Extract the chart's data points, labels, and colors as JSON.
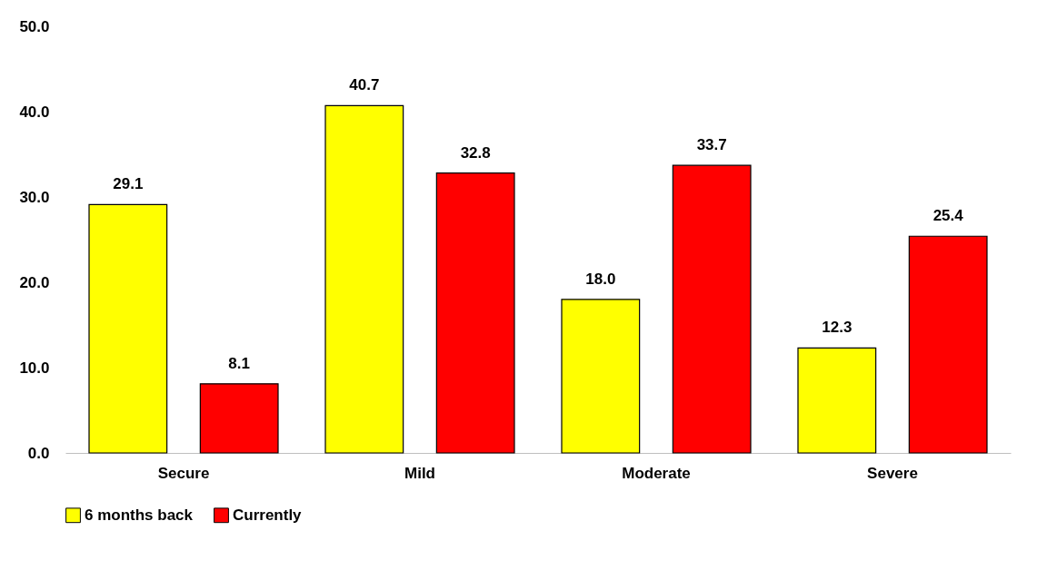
{
  "chart_data": {
    "type": "bar",
    "categories": [
      "Secure",
      "Mild",
      "Moderate",
      "Severe"
    ],
    "series": [
      {
        "name": "6 months back",
        "color": "#ffff00",
        "values": [
          29.1,
          40.7,
          18.0,
          12.3
        ]
      },
      {
        "name": "Currently",
        "color": "#ff0000",
        "values": [
          8.1,
          32.8,
          33.7,
          25.4
        ]
      }
    ],
    "ylim": [
      0,
      50
    ],
    "yticks": [
      {
        "value": 0,
        "label": "0.0"
      },
      {
        "value": 10,
        "label": "10.0"
      },
      {
        "value": 20,
        "label": "20.0"
      },
      {
        "value": 30,
        "label": "30.0"
      },
      {
        "value": 40,
        "label": "40.0"
      },
      {
        "value": 50,
        "label": "50.0"
      }
    ],
    "value_labels": [
      [
        "29.1",
        "40.7",
        "18.0",
        "12.3"
      ],
      [
        "8.1",
        "32.8",
        "33.7",
        "25.4"
      ]
    ],
    "legend": "bottom"
  }
}
